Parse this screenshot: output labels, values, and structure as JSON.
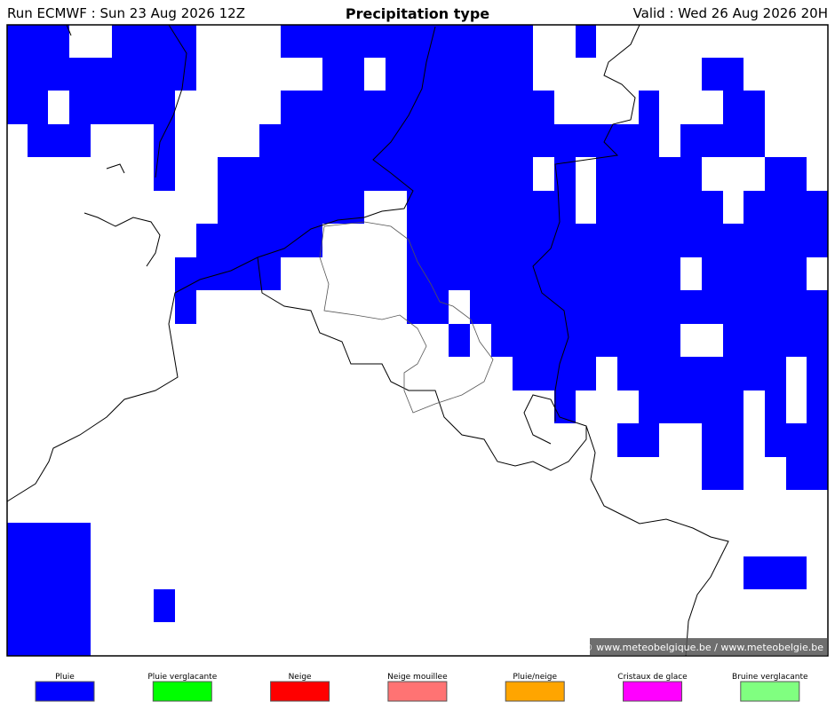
{
  "header": {
    "run": "Run ECMWF : Sun 23 Aug 2026 12Z",
    "title": "Precipitation type",
    "valid": "Valid : Wed 26 Aug 2026 20H"
  },
  "credit": "© www.meteobelgique.be / www.meteobelgie.be",
  "legend": [
    "Pluie",
    "Pluie verglacante",
    "Neige",
    "Neige mouillee",
    "Pluie/neige",
    "Cristaux de glace",
    "Bruine verglacante"
  ]
}
